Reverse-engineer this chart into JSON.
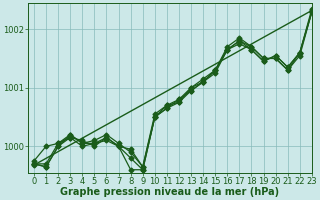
{
  "title": "Graphe pression niveau de la mer (hPa)",
  "background_color": "#cce8e8",
  "line_color": "#1a5c1a",
  "grid_color": "#88bbbb",
  "xlim": [
    -0.5,
    23
  ],
  "ylim": [
    999.55,
    1002.45
  ],
  "xticks": [
    0,
    1,
    2,
    3,
    4,
    5,
    6,
    7,
    8,
    9,
    10,
    11,
    12,
    13,
    14,
    15,
    16,
    17,
    18,
    19,
    20,
    21,
    22,
    23
  ],
  "yticks": [
    1000,
    1001,
    1002
  ],
  "series": [
    [
      999.7,
      999.65,
      1000.0,
      1000.2,
      1000.05,
      1000.05,
      1000.1,
      1000.0,
      999.95,
      999.65,
      1000.55,
      1000.7,
      1000.8,
      1000.95,
      1001.1,
      1001.25,
      1001.65,
      1001.75,
      1001.65,
      1001.45,
      1001.55,
      1001.35,
      1001.6,
      1002.3
    ],
    [
      999.75,
      1000.0,
      1000.05,
      1000.15,
      1000.0,
      1000.05,
      1000.15,
      1000.0,
      999.8,
      999.6,
      1000.5,
      1000.7,
      1000.75,
      1001.0,
      1001.15,
      1001.3,
      1001.7,
      1001.85,
      1001.7,
      1001.5,
      1001.5,
      1001.3,
      1001.55,
      1002.3
    ],
    [
      999.7,
      999.7,
      1000.05,
      1000.2,
      1000.05,
      1000.1,
      1000.2,
      1000.05,
      999.9,
      999.65,
      1000.5,
      1000.65,
      1000.75,
      1000.95,
      1001.1,
      1001.3,
      1001.65,
      1001.8,
      1001.65,
      1001.45,
      1001.55,
      1001.35,
      1001.6,
      1002.3
    ],
    [
      999.7,
      999.65,
      1000.0,
      1000.15,
      1000.1,
      1000.0,
      1000.15,
      1000.0,
      999.6,
      999.6,
      1000.5,
      1000.65,
      1000.8,
      1001.0,
      1001.1,
      1001.3,
      1001.65,
      1001.8,
      1001.7,
      1001.5,
      1001.5,
      1001.3,
      1001.6,
      1002.35
    ]
  ],
  "trend_line": [
    999.68,
    1002.32
  ],
  "marker": "D",
  "marker_size": 2.5,
  "linewidth": 0.9,
  "title_fontsize": 7.0,
  "tick_fontsize": 6.0
}
